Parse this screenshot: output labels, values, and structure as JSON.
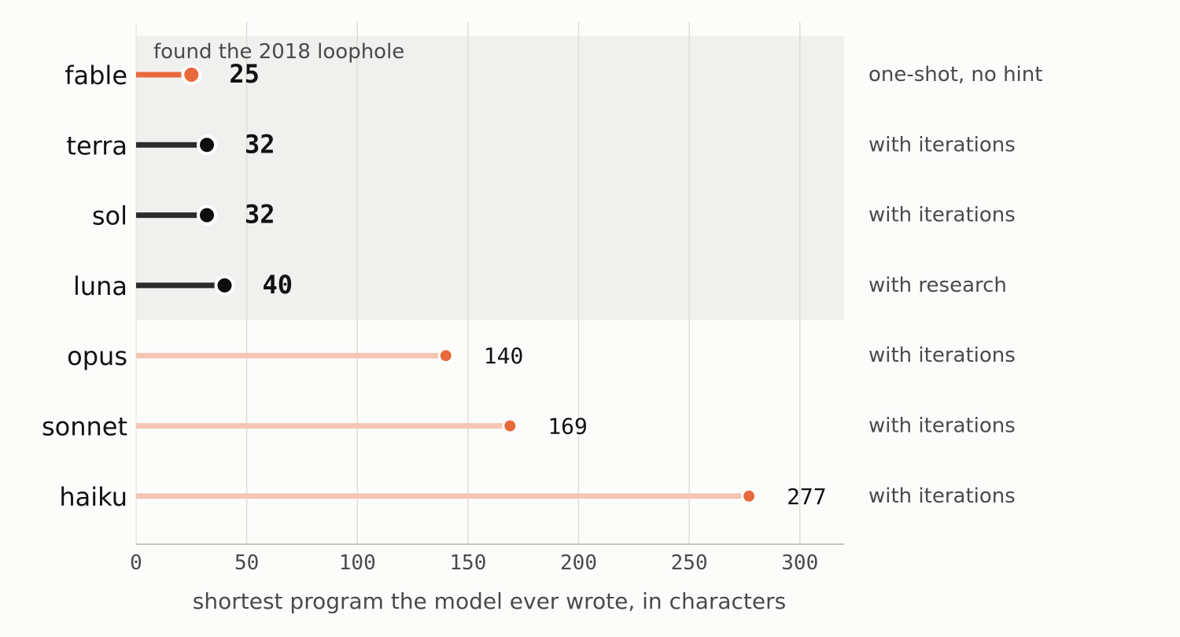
{
  "chart_data": {
    "type": "lollipop",
    "xlabel": "shortest program the model ever wrote, in characters",
    "xlim": [
      0,
      320
    ],
    "xticks": [
      0,
      50,
      100,
      150,
      200,
      250,
      300
    ],
    "grid": "vertical",
    "highlight_region": {
      "label": "found the 2018 loophole",
      "models": [
        "fable",
        "terra",
        "sol",
        "luna"
      ]
    },
    "rows": [
      {
        "model": "fable",
        "value": 25,
        "note": "one-shot, no hint",
        "group": "loophole-best"
      },
      {
        "model": "terra",
        "value": 32,
        "note": "with iterations",
        "group": "loophole"
      },
      {
        "model": "sol",
        "value": 32,
        "note": "with iterations",
        "group": "loophole"
      },
      {
        "model": "luna",
        "value": 40,
        "note": "with research",
        "group": "loophole"
      },
      {
        "model": "opus",
        "value": 140,
        "note": "with iterations",
        "group": "other"
      },
      {
        "model": "sonnet",
        "value": 169,
        "note": "with iterations",
        "group": "other"
      },
      {
        "model": "haiku",
        "value": 277,
        "note": "with iterations",
        "group": "other"
      }
    ],
    "colors": {
      "accent": "#e8693c",
      "accent_light": "#f5c6b4",
      "dark": "#2b2b2b",
      "dot_dark": "#0d0d0d",
      "highlight_bg": "#f0f0ef",
      "grid": "#e0ddd6",
      "axis": "#c8c6c0"
    }
  }
}
